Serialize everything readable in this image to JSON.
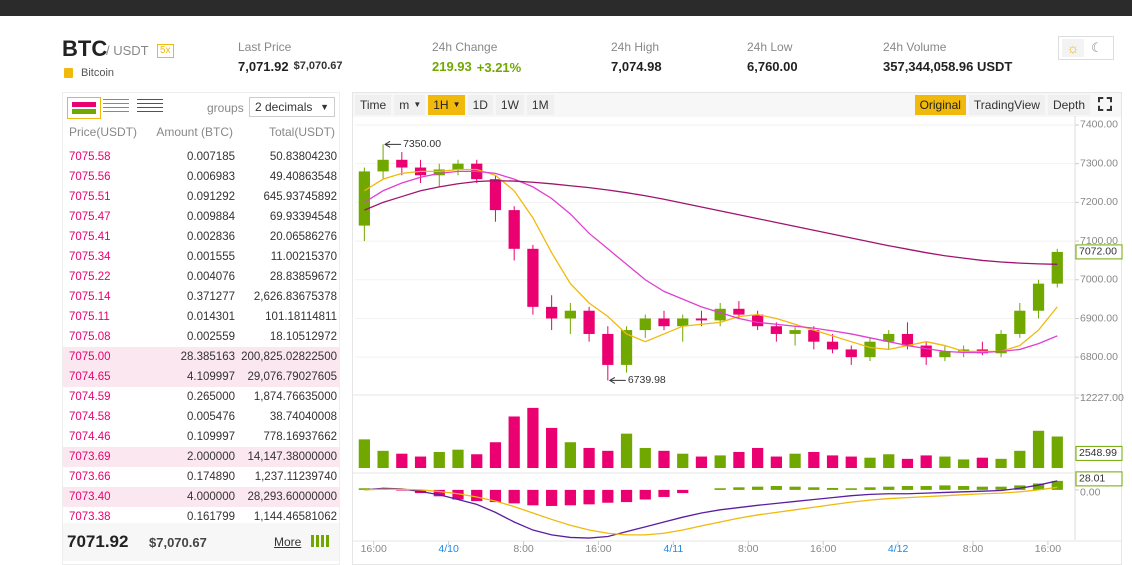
{
  "header": {
    "symbol": "BTC",
    "quote": "/ USDT",
    "leverage": "5x",
    "name": "Bitcoin",
    "stats": [
      {
        "label": "Last Price",
        "value": "7,071.92",
        "extra": "$7,070.67"
      },
      {
        "label": "24h Change",
        "value": "219.93",
        "extra": "+3.21%"
      },
      {
        "label": "24h High",
        "value": "7,074.98"
      },
      {
        "label": "24h Low",
        "value": "6,760.00"
      },
      {
        "label": "24h Volume",
        "value": "357,344,058.96 USDT"
      }
    ]
  },
  "orderbook": {
    "groups_label": "groups",
    "groups_value": "2 decimals",
    "columns": [
      "Price(USDT)",
      "Amount (BTC)",
      "Total(USDT)"
    ],
    "rows": [
      [
        "7075.58",
        "0.007185",
        "50.83804230"
      ],
      [
        "7075.56",
        "0.006983",
        "49.40863548"
      ],
      [
        "7075.51",
        "0.091292",
        "645.93745892"
      ],
      [
        "7075.47",
        "0.009884",
        "69.93394548"
      ],
      [
        "7075.41",
        "0.002836",
        "20.06586276"
      ],
      [
        "7075.34",
        "0.001555",
        "11.00215370"
      ],
      [
        "7075.22",
        "0.004076",
        "28.83859672"
      ],
      [
        "7075.14",
        "0.371277",
        "2,626.83675378"
      ],
      [
        "7075.11",
        "0.014301",
        "101.18114811"
      ],
      [
        "7075.08",
        "0.002559",
        "18.10512972"
      ],
      [
        "7075.00",
        "28.385163",
        "200,825.02822500"
      ],
      [
        "7074.65",
        "4.109997",
        "29,076.79027605"
      ],
      [
        "7074.59",
        "0.265000",
        "1,874.76635000"
      ],
      [
        "7074.58",
        "0.005476",
        "38.74040008"
      ],
      [
        "7074.46",
        "0.109997",
        "778.16937662"
      ],
      [
        "7073.69",
        "2.000000",
        "14,147.38000000"
      ],
      [
        "7073.66",
        "0.174890",
        "1,237.11239740"
      ],
      [
        "7073.40",
        "4.000000",
        "28,293.60000000"
      ],
      [
        "7073.38",
        "0.161799",
        "1,144.46581062"
      ]
    ],
    "last_price": "7071.92",
    "last_usd": "$7,070.67",
    "more": "More"
  },
  "toolbar": {
    "intervals": [
      "Time",
      "m",
      "1H",
      "1D",
      "1W",
      "1M"
    ],
    "active_interval": "1H",
    "views": [
      "Original",
      "TradingView",
      "Depth"
    ],
    "active_view": "Original"
  },
  "chart_data": {
    "type": "candlestick",
    "x": [
      -1,
      1,
      3,
      5,
      7,
      9,
      11,
      13,
      15,
      17,
      19,
      21,
      23,
      25,
      27,
      29,
      31,
      33,
      35,
      37,
      39,
      41,
      43,
      45,
      47,
      49,
      51,
      53,
      55,
      57,
      59,
      61,
      63,
      65,
      67,
      69,
      71,
      73
    ],
    "open": [
      7140,
      7280,
      7310,
      7290,
      7270,
      7285,
      7300,
      7260,
      7180,
      7080,
      6930,
      6900,
      6920,
      6860,
      6780,
      6870,
      6900,
      6880,
      6900,
      6895,
      6925,
      6910,
      6880,
      6860,
      6870,
      6840,
      6820,
      6800,
      6840,
      6860,
      6830,
      6800,
      6815,
      6820,
      6810,
      6860,
      6920,
      6990
    ],
    "high": [
      7290,
      7350,
      7330,
      7310,
      7300,
      7310,
      7310,
      7270,
      7190,
      7090,
      6960,
      6940,
      6930,
      6880,
      6880,
      6910,
      6920,
      6910,
      6920,
      6940,
      6945,
      6920,
      6890,
      6880,
      6880,
      6860,
      6830,
      6850,
      6870,
      6890,
      6840,
      6830,
      6830,
      6840,
      6870,
      6940,
      7000,
      7080
    ],
    "low": [
      7100,
      7260,
      7270,
      7250,
      7240,
      7270,
      7250,
      7150,
      7050,
      6910,
      6870,
      6860,
      6840,
      6739.98,
      6760,
      6850,
      6870,
      6840,
      6880,
      6880,
      6900,
      6870,
      6840,
      6830,
      6820,
      6810,
      6780,
      6790,
      6820,
      6820,
      6780,
      6790,
      6800,
      6805,
      6800,
      6850,
      6900,
      6980
    ],
    "close": [
      7280,
      7310,
      7290,
      7270,
      7285,
      7300,
      7260,
      7180,
      7080,
      6930,
      6900,
      6920,
      6860,
      6780,
      6870,
      6900,
      6880,
      6900,
      6895,
      6925,
      6910,
      6880,
      6860,
      6870,
      6840,
      6820,
      6800,
      6840,
      6860,
      6830,
      6800,
      6815,
      6820,
      6810,
      6860,
      6920,
      6990,
      7072
    ],
    "up_color": "#70a800",
    "down_color": "#ea0070",
    "moving_averages": [
      {
        "color": "#f0b90b",
        "values": [
          7230,
          7260,
          7275,
          7280,
          7280,
          7285,
          7285,
          7270,
          7230,
          7160,
          7070,
          6990,
          6940,
          6905,
          6860,
          6840,
          6860,
          6880,
          6885,
          6890,
          6905,
          6910,
          6900,
          6885,
          6870,
          6855,
          6840,
          6825,
          6820,
          6830,
          6840,
          6830,
          6815,
          6815,
          6815,
          6830,
          6870,
          6930
        ]
      },
      {
        "color": "#e040d0",
        "values": [
          7200,
          7230,
          7250,
          7265,
          7275,
          7280,
          7280,
          7275,
          7260,
          7240,
          7210,
          7170,
          7120,
          7080,
          7040,
          7000,
          6970,
          6950,
          6930,
          6915,
          6900,
          6890,
          6885,
          6880,
          6875,
          6868,
          6860,
          6850,
          6840,
          6830,
          6822,
          6815,
          6812,
          6812,
          6815,
          6820,
          6835,
          6855
        ]
      },
      {
        "color": "#a0146e",
        "values": [
          7180,
          7200,
          7215,
          7230,
          7240,
          7248,
          7254,
          7256,
          7255,
          7252,
          7248,
          7243,
          7238,
          7232,
          7225,
          7217,
          7208,
          7198,
          7188,
          7178,
          7168,
          7158,
          7148,
          7138,
          7128,
          7118,
          7108,
          7098,
          7088,
          7079,
          7070,
          7062,
          7056,
          7050,
          7046,
          7043,
          7041,
          7040
        ]
      }
    ],
    "xlim": [
      -2,
      75
    ],
    "xticks": [
      {
        "value": 0,
        "label": "16:00"
      },
      {
        "value": 8,
        "label": "4/10"
      },
      {
        "value": 16,
        "label": "8:00"
      },
      {
        "value": 24,
        "label": "16:00"
      },
      {
        "value": 32,
        "label": "4/11"
      },
      {
        "value": 40,
        "label": "8:00"
      },
      {
        "value": 48,
        "label": "16:00"
      },
      {
        "value": 56,
        "label": "4/12"
      },
      {
        "value": 64,
        "label": "8:00"
      },
      {
        "value": 72,
        "label": "16:00"
      }
    ],
    "ylim": [
      6710,
      7418
    ],
    "yticks": [
      {
        "value": 6800,
        "label": "6800.00"
      },
      {
        "value": 6900,
        "label": "6900.00"
      },
      {
        "value": 7000,
        "label": "7000.00"
      },
      {
        "value": 7100,
        "label": "7100.00"
      },
      {
        "value": 7200,
        "label": "7200.00"
      },
      {
        "value": 7300,
        "label": "7300.00"
      },
      {
        "value": 7400,
        "label": "7400.00"
      }
    ],
    "grid": true,
    "last_price": {
      "value": 7072,
      "label": "7072.00"
    },
    "annotations": [
      {
        "x": 1,
        "value": 7350,
        "label": "7350.00"
      },
      {
        "x": 25,
        "value": 6739.98,
        "label": "6739.98"
      }
    ],
    "volume": [
      5000,
      3000,
      2500,
      2000,
      2800,
      3200,
      2400,
      4500,
      9000,
      10500,
      7000,
      4500,
      3500,
      3000,
      6000,
      3500,
      3000,
      2500,
      2000,
      2200,
      2800,
      3500,
      2000,
      2500,
      2800,
      2200,
      2000,
      1800,
      2400,
      1600,
      2200,
      2000,
      1500,
      1800,
      1600,
      3000,
      6500,
      5500
    ],
    "volume_ylim": [
      0,
      12227
    ],
    "volume_yticks": [
      {
        "value": 12227,
        "label": "12227.00"
      }
    ],
    "volume_current": 2548.99,
    "macd": {
      "histogram": [
        5,
        3,
        -2,
        -10,
        -20,
        -30,
        -35,
        -38,
        -42,
        -48,
        -50,
        -48,
        -45,
        -40,
        -38,
        -30,
        -22,
        -10,
        0,
        5,
        8,
        10,
        12,
        10,
        8,
        6,
        5,
        8,
        10,
        12,
        12,
        14,
        12,
        10,
        10,
        14,
        20,
        28.01
      ],
      "lines": [
        {
          "color": "#5a1ea0",
          "values": [
            0,
            5,
            3,
            -5,
            -15,
            -30,
            -45,
            -70,
            -100,
            -125,
            -140,
            -148,
            -150,
            -145,
            -130,
            -115,
            -100,
            -85,
            -72,
            -62,
            -55,
            -48,
            -42,
            -36,
            -30,
            -24,
            -18,
            -14,
            -12,
            -12,
            -10,
            -8,
            -6,
            -4,
            -2,
            5,
            15,
            28
          ]
        },
        {
          "color": "#f0b90b",
          "values": [
            0,
            2,
            2,
            0,
            -5,
            -12,
            -22,
            -35,
            -52,
            -72,
            -92,
            -110,
            -125,
            -135,
            -140,
            -140,
            -135,
            -125,
            -112,
            -100,
            -88,
            -78,
            -70,
            -62,
            -54,
            -46,
            -38,
            -32,
            -27,
            -24,
            -21,
            -18,
            -15,
            -12,
            -10,
            -6,
            0,
            8
          ]
        }
      ],
      "ylim": [
        -156,
        37
      ],
      "yticks": [
        {
          "value": 0,
          "label": "0.00"
        }
      ],
      "current": 28.01
    }
  }
}
